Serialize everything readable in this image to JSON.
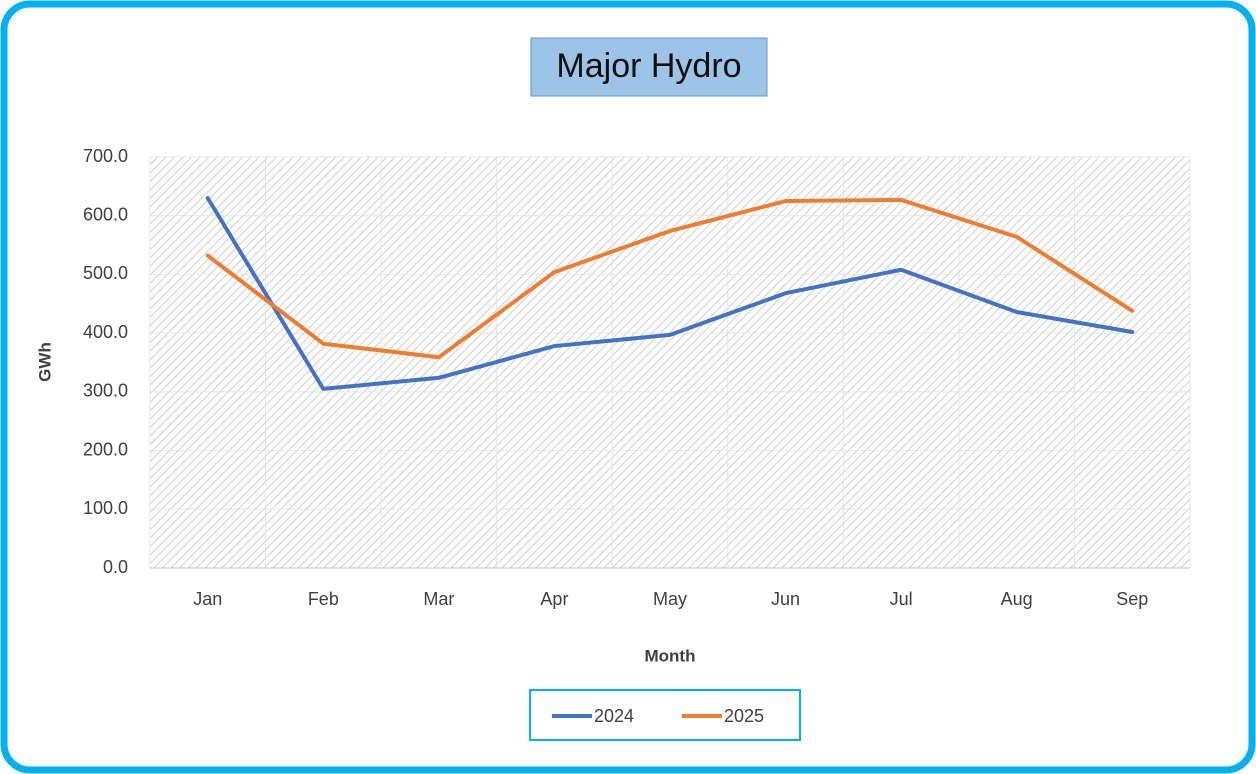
{
  "chart_data": {
    "type": "line",
    "title": "Major Hydro",
    "x_label": "Month",
    "y_label": "GWh",
    "categories": [
      "Jan",
      "Feb",
      "Mar",
      "Apr",
      "May",
      "Jun",
      "Jul",
      "Aug",
      "Sep"
    ],
    "series": [
      {
        "name": "2024",
        "color": "#4472c4",
        "values": [
          630,
          305,
          324,
          378,
          397,
          468,
          508,
          436,
          402
        ]
      },
      {
        "name": "2025",
        "color": "#ed7d31",
        "values": [
          532,
          382,
          359,
          504,
          574,
          625,
          627,
          564,
          438
        ]
      }
    ],
    "ylim": [
      0,
      700
    ],
    "yticks": [
      {
        "value": 0,
        "label": "0.0"
      },
      {
        "value": 100,
        "label": "100.0"
      },
      {
        "value": 200,
        "label": "200.0"
      },
      {
        "value": 300,
        "label": "300.0"
      },
      {
        "value": 400,
        "label": "400.0"
      },
      {
        "value": 500,
        "label": "500.0"
      },
      {
        "value": 600,
        "label": "600.0"
      },
      {
        "value": 700,
        "label": "700.0"
      }
    ],
    "grid": true,
    "legend": "bottom"
  }
}
